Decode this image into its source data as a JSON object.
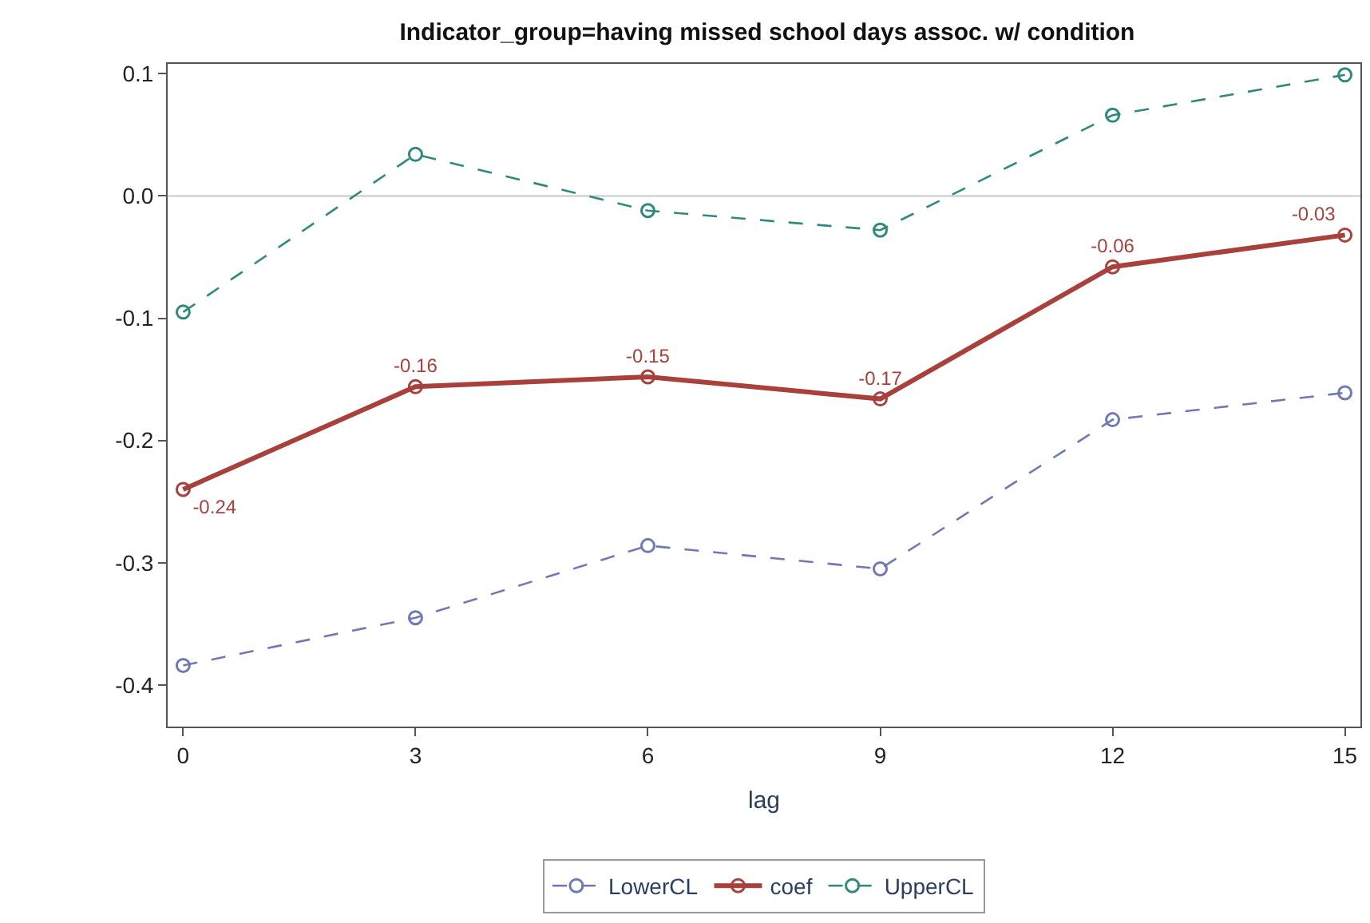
{
  "chart_data": {
    "type": "line",
    "title": "Indicator_group=having missed school days assoc. w/ condition",
    "xlabel": "lag",
    "x": [
      0,
      3,
      6,
      9,
      12,
      15
    ],
    "series": [
      {
        "name": "LowerCL",
        "color": "#7078b8",
        "values": [
          -0.384,
          -0.345,
          -0.286,
          -0.305,
          -0.183,
          -0.161
        ],
        "line_style": "dashed"
      },
      {
        "name": "coef",
        "color": "#a8403c",
        "values": [
          -0.24,
          -0.156,
          -0.148,
          -0.166,
          -0.058,
          -0.032
        ],
        "line_style": "solid",
        "value_labels": [
          "-0.24",
          "-0.16",
          "-0.15",
          "-0.17",
          "-0.06",
          "-0.03"
        ]
      },
      {
        "name": "UpperCL",
        "color": "#2e8a7c",
        "values": [
          -0.095,
          0.034,
          -0.012,
          -0.028,
          0.066,
          0.099
        ],
        "line_style": "dashed"
      }
    ],
    "xlim": [
      -0.2,
      15.2
    ],
    "xticks": [
      0,
      3,
      6,
      9,
      12,
      15
    ],
    "ylim": [
      -0.434,
      0.108
    ],
    "yticks": [
      {
        "value": 0.1,
        "label": "0.1"
      },
      {
        "value": 0.0,
        "label": "0.0"
      },
      {
        "value": -0.1,
        "label": "-0.1"
      },
      {
        "value": -0.2,
        "label": "-0.2"
      },
      {
        "value": -0.3,
        "label": "-0.3"
      },
      {
        "value": -0.4,
        "label": "-0.4"
      }
    ],
    "ref_lines": [
      {
        "axis": "y",
        "value": 0,
        "label": null,
        "color": "#c8c8c8"
      }
    ],
    "marker": "circle",
    "grid": false,
    "legend": "bottom"
  }
}
